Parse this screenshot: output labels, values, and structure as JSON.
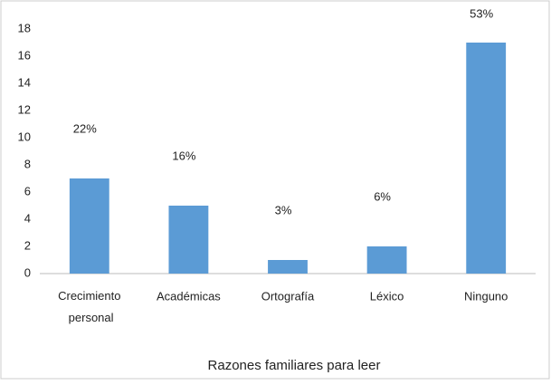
{
  "chart_data": {
    "type": "bar",
    "x_label": "Razones familiares para leer",
    "categories": [
      "Crecimiento personal",
      "Académicas",
      "Ortografía",
      "Léxico",
      "Ninguno"
    ],
    "values": [
      7,
      5,
      1,
      2,
      17
    ],
    "value_labels": [
      "22%",
      "16%",
      "3%",
      "6%",
      "53%"
    ],
    "color": "#5b9bd5",
    "ylim": [
      0,
      18
    ],
    "yticks": [
      0,
      2,
      4,
      6,
      8,
      10,
      12,
      14,
      16,
      18
    ],
    "grid": false
  }
}
